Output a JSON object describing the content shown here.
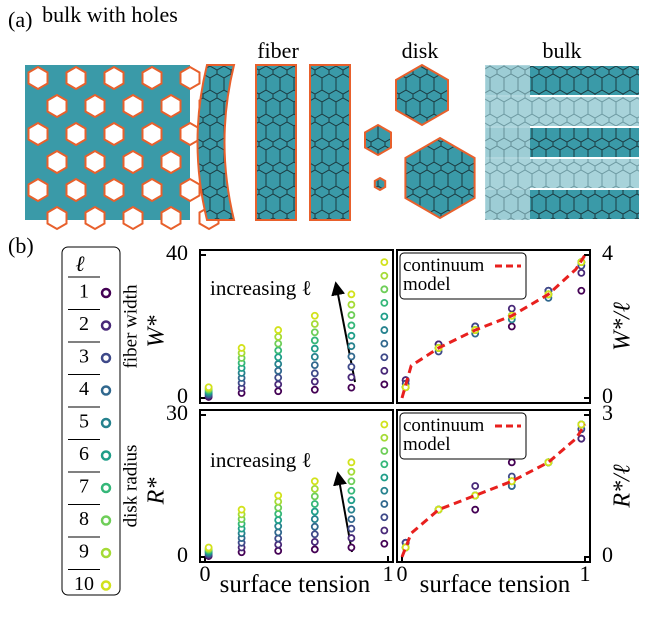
{
  "figure_labels": {
    "a": "(a)",
    "b": "(b)"
  },
  "illustrations": [
    "bulk with holes",
    "fiber",
    "disk",
    "bulk"
  ],
  "legend_title": "ℓ",
  "chart_data": [
    {
      "type": "scatter",
      "xlim": [
        0,
        1
      ],
      "ylim": [
        0,
        40
      ],
      "yticks": [
        0,
        40
      ],
      "ylabel": "W*",
      "ylabel_note": "fiber width",
      "annotation": "increasing ℓ",
      "x": [
        0.02,
        0.2,
        0.4,
        0.6,
        0.8,
        0.98
      ],
      "series": [
        {
          "name": "1",
          "color": "#440154",
          "values": [
            0.3,
            1.4,
            1.9,
            2.3,
            2.9,
            3.8
          ]
        },
        {
          "name": "2",
          "color": "#482878",
          "values": [
            0.6,
            2.8,
            3.8,
            4.6,
            5.8,
            7.6
          ]
        },
        {
          "name": "3",
          "color": "#3e4989",
          "values": [
            0.9,
            4.2,
            5.7,
            6.9,
            8.7,
            11.4
          ]
        },
        {
          "name": "4",
          "color": "#31688e",
          "values": [
            1.2,
            5.6,
            7.6,
            9.2,
            11.6,
            15.2
          ]
        },
        {
          "name": "5",
          "color": "#26828e",
          "values": [
            1.5,
            7,
            9.5,
            11.5,
            14.5,
            19
          ]
        },
        {
          "name": "6",
          "color": "#1f9e89",
          "values": [
            1.8,
            8.4,
            11.4,
            13.8,
            17.4,
            22.8
          ]
        },
        {
          "name": "7",
          "color": "#35b779",
          "values": [
            2.1,
            9.8,
            13.3,
            16.1,
            20.3,
            26.6
          ]
        },
        {
          "name": "8",
          "color": "#6ece58",
          "values": [
            2.4,
            11.2,
            15.2,
            18.4,
            23.2,
            30.4
          ]
        },
        {
          "name": "9",
          "color": "#a5db36",
          "values": [
            2.7,
            12.6,
            17.1,
            20.7,
            26.1,
            34.2
          ]
        },
        {
          "name": "10",
          "color": "#d2e21b",
          "values": [
            3,
            14,
            19,
            23,
            29,
            38
          ]
        }
      ]
    },
    {
      "type": "scatter",
      "xlim": [
        0,
        1
      ],
      "ylim": [
        0,
        4
      ],
      "yticks": [
        0,
        4
      ],
      "ylabel": "W*/ℓ",
      "yaxis_side": "right",
      "x": [
        0.02,
        0.2,
        0.4,
        0.6,
        0.8,
        0.98
      ],
      "series": [
        {
          "color": "#440154",
          "values": [
            0.5,
            1.5,
            2,
            2,
            3,
            3
          ]
        },
        {
          "color": "#482878",
          "values": [
            0.5,
            1.5,
            2,
            2.5,
            3,
            3.5
          ]
        },
        {
          "color": "#3e4989",
          "values": [
            0.4,
            1.3,
            2,
            2.3,
            3,
            3.7
          ]
        },
        {
          "color": "#31688e",
          "values": [
            0.3,
            1.4,
            1.8,
            2.3,
            2.8,
            3.8
          ]
        },
        {
          "color": "#26828e",
          "values": [
            0.3,
            1.4,
            1.9,
            2.2,
            2.9,
            3.8
          ]
        },
        {
          "color": "#1f9e89",
          "values": [
            0.3,
            1.4,
            1.9,
            2.3,
            2.9,
            3.8
          ]
        },
        {
          "color": "#35b779",
          "values": [
            0.3,
            1.4,
            1.9,
            2.3,
            2.9,
            3.8
          ]
        },
        {
          "color": "#6ece58",
          "values": [
            0.3,
            1.4,
            1.9,
            2.3,
            2.9,
            3.8
          ]
        },
        {
          "color": "#a5db36",
          "values": [
            0.3,
            1.4,
            1.9,
            2.3,
            2.9,
            3.8
          ]
        },
        {
          "color": "#d2e21b",
          "values": [
            0.3,
            1.4,
            1.9,
            2.3,
            2.9,
            3.8
          ]
        }
      ],
      "model": {
        "name": "continuum model",
        "color": "#e8201e",
        "x": [
          0,
          0.05,
          0.2,
          0.4,
          0.6,
          0.8,
          0.95,
          1
        ],
        "values": [
          0,
          0.9,
          1.4,
          1.9,
          2.3,
          2.9,
          3.6,
          4
        ]
      }
    },
    {
      "type": "scatter",
      "xlim": [
        0,
        1
      ],
      "ylim": [
        0,
        30
      ],
      "yticks": [
        0,
        30
      ],
      "xticks": [
        0,
        1
      ],
      "xlabel": "surface tension",
      "ylabel": "R*",
      "ylabel_note": "disk radius",
      "annotation": "increasing ℓ",
      "x": [
        0.02,
        0.2,
        0.4,
        0.6,
        0.8,
        0.98
      ],
      "series": [
        {
          "color": "#440154",
          "values": [
            0.2,
            1,
            1.3,
            1.6,
            2,
            2.8
          ]
        },
        {
          "color": "#482878",
          "values": [
            0.4,
            2,
            2.6,
            3.2,
            4,
            5.6
          ]
        },
        {
          "color": "#3e4989",
          "values": [
            0.6,
            3,
            3.9,
            4.8,
            6,
            8.4
          ]
        },
        {
          "color": "#31688e",
          "values": [
            0.8,
            4,
            5.2,
            6.4,
            8,
            11.2
          ]
        },
        {
          "color": "#26828e",
          "values": [
            1,
            5,
            6.5,
            8,
            10,
            14
          ]
        },
        {
          "color": "#1f9e89",
          "values": [
            1.2,
            6,
            7.8,
            9.6,
            12,
            16.8
          ]
        },
        {
          "color": "#35b779",
          "values": [
            1.4,
            7,
            9.1,
            11.2,
            14,
            19.6
          ]
        },
        {
          "color": "#6ece58",
          "values": [
            1.6,
            8,
            10.4,
            12.8,
            16,
            22.4
          ]
        },
        {
          "color": "#a5db36",
          "values": [
            1.8,
            9,
            11.7,
            14.4,
            18,
            25.2
          ]
        },
        {
          "color": "#d2e21b",
          "values": [
            2,
            10,
            13,
            16,
            20,
            28
          ]
        }
      ]
    },
    {
      "type": "scatter",
      "xlim": [
        0,
        1
      ],
      "ylim": [
        0,
        3
      ],
      "yticks": [
        0,
        3
      ],
      "xticks": [
        0,
        1
      ],
      "xlabel": "surface tension",
      "ylabel": "R*/ℓ",
      "yaxis_side": "right",
      "x": [
        0.02,
        0.2,
        0.4,
        0.6,
        0.8,
        0.98
      ],
      "series": [
        {
          "color": "#440154",
          "values": [
            0.3,
            1,
            1,
            2,
            2,
            2.5
          ]
        },
        {
          "color": "#482878",
          "values": [
            0.3,
            1,
            1.5,
            1.5,
            2,
            2.5
          ]
        },
        {
          "color": "#3e4989",
          "values": [
            0.3,
            1,
            1.3,
            1.7,
            2,
            2.7
          ]
        },
        {
          "color": "#31688e",
          "values": [
            0.2,
            1,
            1.3,
            1.5,
            2,
            2.8
          ]
        },
        {
          "color": "#26828e",
          "values": [
            0.2,
            1,
            1.3,
            1.6,
            2,
            2.8
          ]
        },
        {
          "color": "#1f9e89",
          "values": [
            0.2,
            1,
            1.3,
            1.6,
            2,
            2.8
          ]
        },
        {
          "color": "#35b779",
          "values": [
            0.2,
            1,
            1.3,
            1.6,
            2,
            2.8
          ]
        },
        {
          "color": "#6ece58",
          "values": [
            0.2,
            1,
            1.3,
            1.6,
            2,
            2.8
          ]
        },
        {
          "color": "#a5db36",
          "values": [
            0.2,
            1,
            1.3,
            1.6,
            2,
            2.8
          ]
        },
        {
          "color": "#d2e21b",
          "values": [
            0.2,
            1,
            1.3,
            1.6,
            2,
            2.8
          ]
        }
      ],
      "model": {
        "name": "continuum model",
        "color": "#e8201e",
        "x": [
          0,
          0.05,
          0.2,
          0.4,
          0.6,
          0.8,
          0.95,
          1
        ],
        "values": [
          0,
          0.5,
          1.0,
          1.3,
          1.6,
          2.0,
          2.5,
          2.8
        ]
      }
    }
  ]
}
